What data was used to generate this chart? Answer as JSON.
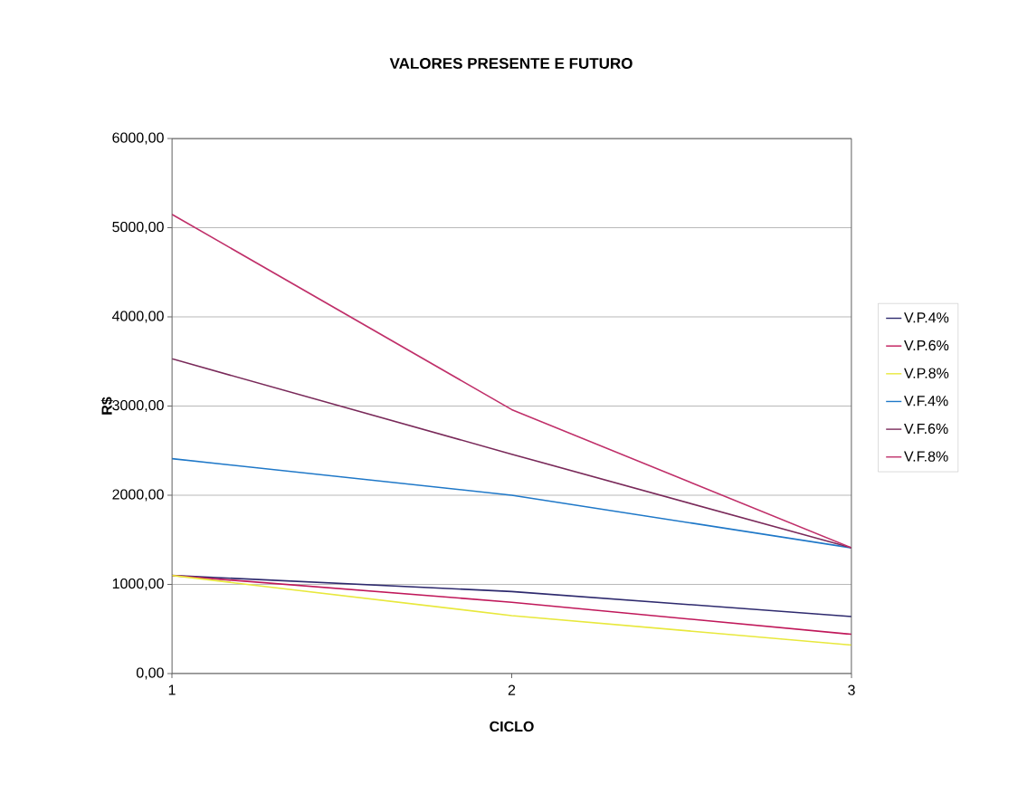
{
  "chart_data": {
    "type": "line",
    "title": "VALORES PRESENTE E FUTURO",
    "xlabel": "CICLO",
    "ylabel": "R$",
    "x": [
      1,
      2,
      3
    ],
    "xlim": [
      1,
      3
    ],
    "xticks": [
      1,
      2,
      3
    ],
    "ylim": [
      0,
      6000
    ],
    "yticks": [
      {
        "value": 0,
        "label": "0,00"
      },
      {
        "value": 1000,
        "label": "1000,00"
      },
      {
        "value": 2000,
        "label": "2000,00"
      },
      {
        "value": 3000,
        "label": "3000,00"
      },
      {
        "value": 4000,
        "label": "4000,00"
      },
      {
        "value": 5000,
        "label": "5000,00"
      },
      {
        "value": 6000,
        "label": "6000,00"
      }
    ],
    "grid": "y",
    "legend": "right",
    "marker": "none",
    "line_style": "solid",
    "series": [
      {
        "name": "V.P.4%",
        "color": "#2e2a6e",
        "values": [
          1100,
          920,
          640
        ]
      },
      {
        "name": "V.P.6%",
        "color": "#c0185a",
        "values": [
          1100,
          800,
          440
        ]
      },
      {
        "name": "V.P.8%",
        "color": "#e8e83c",
        "values": [
          1100,
          650,
          320
        ]
      },
      {
        "name": "V.F.4%",
        "color": "#1f78c8",
        "values": [
          2410,
          2000,
          1410
        ]
      },
      {
        "name": "V.F.6%",
        "color": "#7a2a5a",
        "values": [
          3530,
          2460,
          1410
        ]
      },
      {
        "name": "V.F.8%",
        "color": "#c0306a",
        "values": [
          5150,
          2960,
          1410
        ]
      }
    ]
  }
}
